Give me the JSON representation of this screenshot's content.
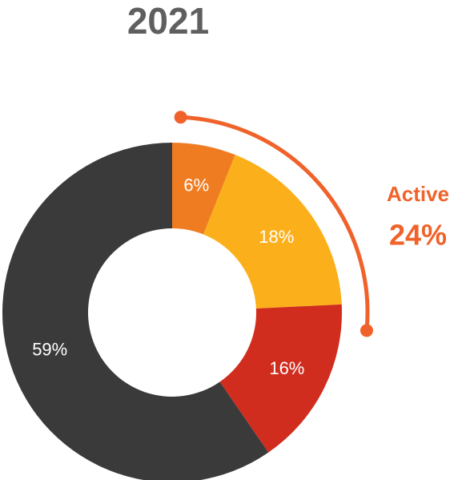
{
  "chart_data": {
    "type": "donut",
    "title": "2021",
    "values": [
      6,
      18,
      16,
      59
    ],
    "value_labels": [
      "6%",
      "18%",
      "16%",
      "59%"
    ],
    "colors": [
      "#f07c22",
      "#fbb01b",
      "#d02d1f",
      "#3a3a3a"
    ],
    "annotation": {
      "text": "Active",
      "value": 24,
      "value_label": "24%",
      "color": "#f0622a"
    }
  }
}
